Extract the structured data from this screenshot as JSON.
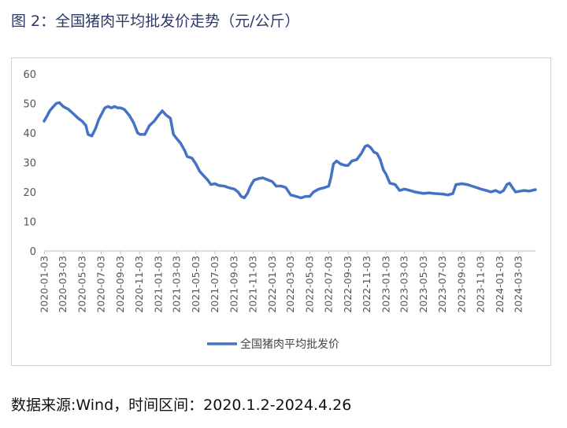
{
  "figure_title": "图 2：全国猪肉平均批发价走势（元/公斤）",
  "source_note": "数据来源:Wind，时间区间：2020.1.2-2024.4.26",
  "chart_data": {
    "type": "line",
    "title": "",
    "xlabel": "",
    "ylabel": "",
    "ylim": [
      0,
      60
    ],
    "yticks": [
      0,
      10,
      20,
      30,
      40,
      50,
      60
    ],
    "grid": false,
    "legend_position": "bottom-center",
    "line_color": "#4472c4",
    "x_tick_labels": [
      "2020-01-03",
      "2020-03-03",
      "2020-05-03",
      "2020-07-03",
      "2020-09-03",
      "2020-11-03",
      "2021-01-03",
      "2021-03-03",
      "2021-05-03",
      "2021-07-03",
      "2021-09-03",
      "2021-11-03",
      "2022-01-03",
      "2022-03-03",
      "2022-05-03",
      "2022-07-03",
      "2022-09-03",
      "2022-11-03",
      "2023-01-03",
      "2023-03-03",
      "2023-05-03",
      "2023-07-03",
      "2023-09-03",
      "2023-11-03",
      "2024-01-03",
      "2024-03-03"
    ],
    "series": [
      {
        "name": "全国猪肉平均批发价",
        "points": [
          [
            "2020-01-02",
            44.0
          ],
          [
            "2020-01-10",
            45.5
          ],
          [
            "2020-01-20",
            47.5
          ],
          [
            "2020-02-01",
            49.0
          ],
          [
            "2020-02-10",
            50.0
          ],
          [
            "2020-02-20",
            50.3
          ],
          [
            "2020-03-03",
            49.0
          ],
          [
            "2020-03-20",
            48.0
          ],
          [
            "2020-04-05",
            46.5
          ],
          [
            "2020-04-20",
            45.0
          ],
          [
            "2020-05-03",
            44.0
          ],
          [
            "2020-05-15",
            42.5
          ],
          [
            "2020-05-22",
            39.5
          ],
          [
            "2020-06-03",
            39.0
          ],
          [
            "2020-06-15",
            41.5
          ],
          [
            "2020-06-25",
            44.5
          ],
          [
            "2020-07-05",
            46.5
          ],
          [
            "2020-07-15",
            48.5
          ],
          [
            "2020-07-25",
            49.0
          ],
          [
            "2020-08-05",
            48.5
          ],
          [
            "2020-08-15",
            49.0
          ],
          [
            "2020-08-25",
            48.5
          ],
          [
            "2020-09-03",
            48.5
          ],
          [
            "2020-09-15",
            48.0
          ],
          [
            "2020-10-01",
            46.0
          ],
          [
            "2020-10-15",
            43.5
          ],
          [
            "2020-10-28",
            40.0
          ],
          [
            "2020-11-05",
            39.5
          ],
          [
            "2020-11-20",
            39.5
          ],
          [
            "2020-12-05",
            42.5
          ],
          [
            "2020-12-20",
            44.0
          ],
          [
            "2021-01-03",
            46.0
          ],
          [
            "2021-01-15",
            47.5
          ],
          [
            "2021-01-28",
            46.0
          ],
          [
            "2021-02-10",
            45.0
          ],
          [
            "2021-02-20",
            39.5
          ],
          [
            "2021-03-03",
            38.0
          ],
          [
            "2021-03-15",
            36.5
          ],
          [
            "2021-03-28",
            34.0
          ],
          [
            "2021-04-05",
            32.0
          ],
          [
            "2021-04-20",
            31.5
          ],
          [
            "2021-05-03",
            29.5
          ],
          [
            "2021-05-15",
            27.0
          ],
          [
            "2021-05-28",
            25.5
          ],
          [
            "2021-06-10",
            24.0
          ],
          [
            "2021-06-20",
            22.5
          ],
          [
            "2021-07-03",
            22.8
          ],
          [
            "2021-07-15",
            22.2
          ],
          [
            "2021-08-01",
            22.0
          ],
          [
            "2021-08-15",
            21.5
          ],
          [
            "2021-09-03",
            21.0
          ],
          [
            "2021-09-15",
            20.0
          ],
          [
            "2021-09-25",
            18.5
          ],
          [
            "2021-10-05",
            18.0
          ],
          [
            "2021-10-15",
            19.5
          ],
          [
            "2021-10-25",
            22.0
          ],
          [
            "2021-11-05",
            24.0
          ],
          [
            "2021-11-20",
            24.5
          ],
          [
            "2021-12-03",
            24.8
          ],
          [
            "2021-12-15",
            24.3
          ],
          [
            "2022-01-03",
            23.5
          ],
          [
            "2022-01-15",
            22.0
          ],
          [
            "2022-02-01",
            22.0
          ],
          [
            "2022-02-15",
            21.5
          ],
          [
            "2022-03-03",
            19.0
          ],
          [
            "2022-03-20",
            18.5
          ],
          [
            "2022-04-05",
            18.0
          ],
          [
            "2022-04-20",
            18.5
          ],
          [
            "2022-05-03",
            18.5
          ],
          [
            "2022-05-15",
            20.0
          ],
          [
            "2022-06-01",
            21.0
          ],
          [
            "2022-06-20",
            21.5
          ],
          [
            "2022-07-03",
            22.0
          ],
          [
            "2022-07-10",
            25.0
          ],
          [
            "2022-07-18",
            29.5
          ],
          [
            "2022-07-28",
            30.5
          ],
          [
            "2022-08-10",
            29.5
          ],
          [
            "2022-08-25",
            29.0
          ],
          [
            "2022-09-03",
            29.0
          ],
          [
            "2022-09-15",
            30.5
          ],
          [
            "2022-10-01",
            31.0
          ],
          [
            "2022-10-15",
            33.0
          ],
          [
            "2022-10-28",
            35.5
          ],
          [
            "2022-11-05",
            35.8
          ],
          [
            "2022-11-15",
            35.0
          ],
          [
            "2022-11-25",
            33.5
          ],
          [
            "2022-12-05",
            33.0
          ],
          [
            "2022-12-15",
            31.0
          ],
          [
            "2022-12-25",
            27.5
          ],
          [
            "2023-01-03",
            26.0
          ],
          [
            "2023-01-15",
            23.0
          ],
          [
            "2023-02-01",
            22.5
          ],
          [
            "2023-02-15",
            20.5
          ],
          [
            "2023-03-03",
            21.0
          ],
          [
            "2023-03-20",
            20.5
          ],
          [
            "2023-04-05",
            20.0
          ],
          [
            "2023-05-03",
            19.5
          ],
          [
            "2023-05-20",
            19.7
          ],
          [
            "2023-06-05",
            19.5
          ],
          [
            "2023-07-03",
            19.3
          ],
          [
            "2023-07-20",
            19.0
          ],
          [
            "2023-08-05",
            19.5
          ],
          [
            "2023-08-15",
            22.5
          ],
          [
            "2023-09-03",
            22.8
          ],
          [
            "2023-09-20",
            22.5
          ],
          [
            "2023-10-05",
            22.0
          ],
          [
            "2023-10-20",
            21.5
          ],
          [
            "2023-11-03",
            21.0
          ],
          [
            "2023-11-20",
            20.5
          ],
          [
            "2023-12-05",
            20.0
          ],
          [
            "2023-12-20",
            20.5
          ],
          [
            "2024-01-03",
            19.8
          ],
          [
            "2024-01-15",
            20.5
          ],
          [
            "2024-01-25",
            22.5
          ],
          [
            "2024-02-03",
            23.0
          ],
          [
            "2024-02-12",
            21.5
          ],
          [
            "2024-02-22",
            20.0
          ],
          [
            "2024-03-03",
            20.2
          ],
          [
            "2024-03-20",
            20.5
          ],
          [
            "2024-04-05",
            20.3
          ],
          [
            "2024-04-26",
            20.8
          ]
        ]
      }
    ]
  }
}
